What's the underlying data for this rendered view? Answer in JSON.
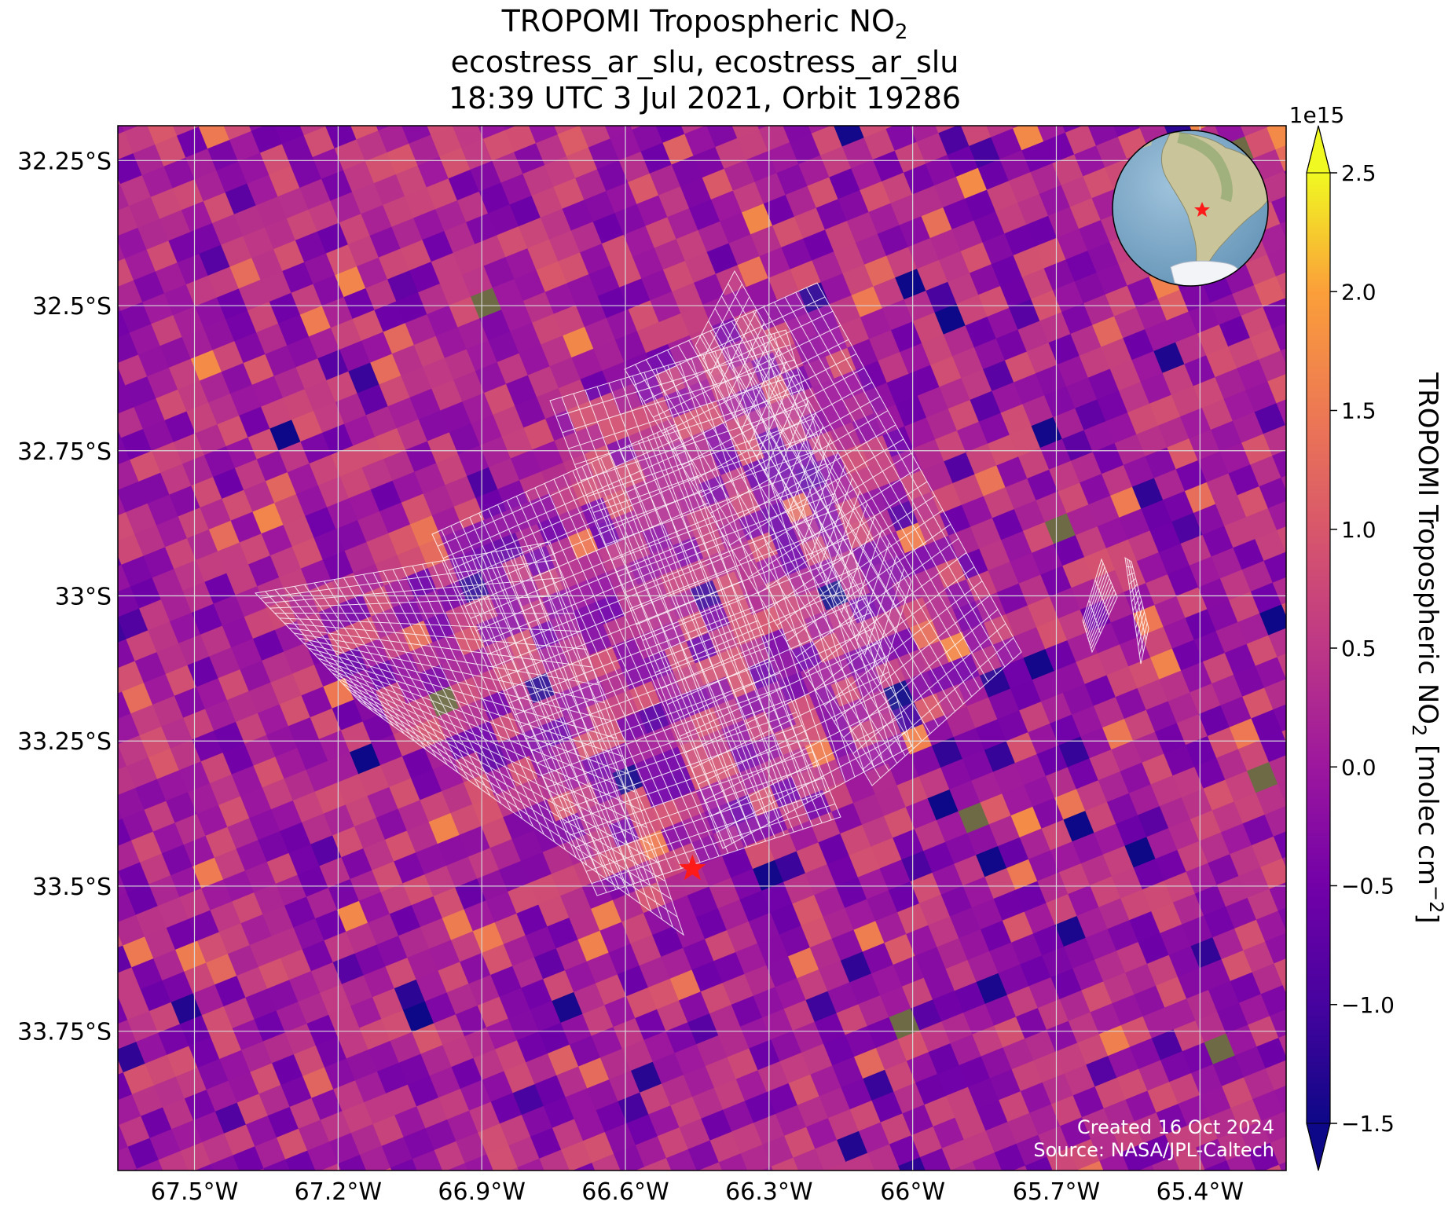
{
  "title": {
    "line1_main": "TROPOMI Tropospheric NO",
    "line1_sub": "2",
    "line2": "ecostress_ar_slu, ecostress_ar_slu",
    "line3": "18:39 UTC 3 Jul 2021, Orbit 19286"
  },
  "map": {
    "lon_range": [
      -67.66,
      -65.22
    ],
    "lat_range": [
      -33.99,
      -32.19
    ],
    "lon_ticks": [
      {
        "value": -67.5,
        "label": "67.5°W"
      },
      {
        "value": -67.2,
        "label": "67.2°W"
      },
      {
        "value": -66.9,
        "label": "66.9°W"
      },
      {
        "value": -66.6,
        "label": "66.6°W"
      },
      {
        "value": -66.3,
        "label": "66.3°W"
      },
      {
        "value": -66.0,
        "label": "66°W"
      },
      {
        "value": -65.7,
        "label": "65.7°W"
      },
      {
        "value": -65.4,
        "label": "65.4°W"
      }
    ],
    "lat_ticks": [
      {
        "value": -32.25,
        "label": "32.25°S"
      },
      {
        "value": -32.5,
        "label": "32.5°S"
      },
      {
        "value": -32.75,
        "label": "32.75°S"
      },
      {
        "value": -33.0,
        "label": "33°S"
      },
      {
        "value": -33.25,
        "label": "33.25°S"
      },
      {
        "value": -33.5,
        "label": "33.5°S"
      },
      {
        "value": -33.75,
        "label": "33.75°S"
      }
    ],
    "site_marker": {
      "lon": -66.46,
      "lat": -33.47,
      "color": "#ff1a1a",
      "icon": "star-icon"
    },
    "grid_color": "#d8d8d8",
    "footprint_color": "#ffffff"
  },
  "colorbar": {
    "label_main": "TROPOMI Tropospheric NO",
    "label_sub": "2",
    "label_unit_open": " [molec cm",
    "label_unit_sup": "−2",
    "label_unit_close": "]",
    "multiplier": "1e15",
    "vmin": -1.5,
    "vmax": 2.5,
    "colormap": "plasma",
    "extend": "both",
    "ticks": [
      {
        "value": 2.5,
        "label": "2.5"
      },
      {
        "value": 2.0,
        "label": "2.0"
      },
      {
        "value": 1.5,
        "label": "1.5"
      },
      {
        "value": 1.0,
        "label": "1.0"
      },
      {
        "value": 0.5,
        "label": "0.5"
      },
      {
        "value": 0.0,
        "label": "0.0"
      },
      {
        "value": -0.5,
        "label": "−0.5"
      },
      {
        "value": -1.0,
        "label": "−1.0"
      },
      {
        "value": -1.5,
        "label": "−1.5"
      }
    ]
  },
  "inset": {
    "icon": "globe-icon",
    "region": "South America",
    "marker_color": "#ff1a1a"
  },
  "credits": {
    "created": "Created 16 Oct 2024",
    "source": "Source: NASA/JPL-Caltech"
  }
}
